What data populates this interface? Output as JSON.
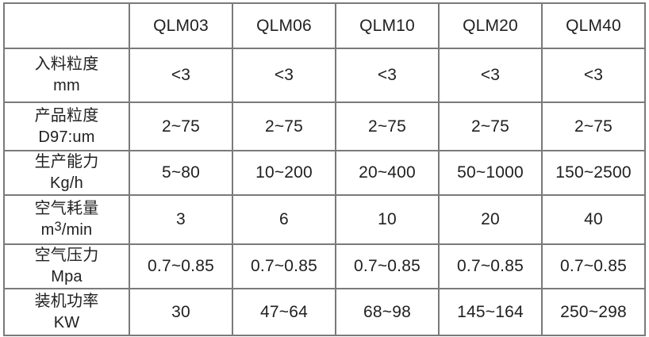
{
  "table": {
    "columns": [
      "",
      "QLM03",
      "QLM06",
      "QLM10",
      "QLM20",
      "QLM40"
    ],
    "rows": [
      {
        "name": "入料粒度",
        "unit": "mm",
        "values": [
          "<3",
          "<3",
          "<3",
          "<3",
          "<3"
        ]
      },
      {
        "name": "产品粒度",
        "unit": "D97:um",
        "values": [
          "2~75",
          "2~75",
          "2~75",
          "2~75",
          "2~75"
        ]
      },
      {
        "name": "生产能力",
        "unit": "Kg/h",
        "values": [
          "5~80",
          "10~200",
          "20~400",
          "50~1000",
          "150~2500"
        ]
      },
      {
        "name": "空气耗量",
        "unit": "m³/min",
        "values": [
          "3",
          "6",
          "10",
          "20",
          "40"
        ]
      },
      {
        "name": "空气压力",
        "unit": "Mpa",
        "values": [
          "0.7~0.85",
          "0.7~0.85",
          "0.7~0.85",
          "0.7~0.85",
          "0.7~0.85"
        ]
      },
      {
        "name": "装机功率",
        "unit": "KW",
        "values": [
          "30",
          "47~64",
          "68~98",
          "145~164",
          "250~298"
        ]
      }
    ]
  },
  "colors": {
    "text": "#1e1e1e",
    "border_inner": "#7a7a7a",
    "border_outer": "#5c5c5c",
    "background": "#ffffff"
  }
}
